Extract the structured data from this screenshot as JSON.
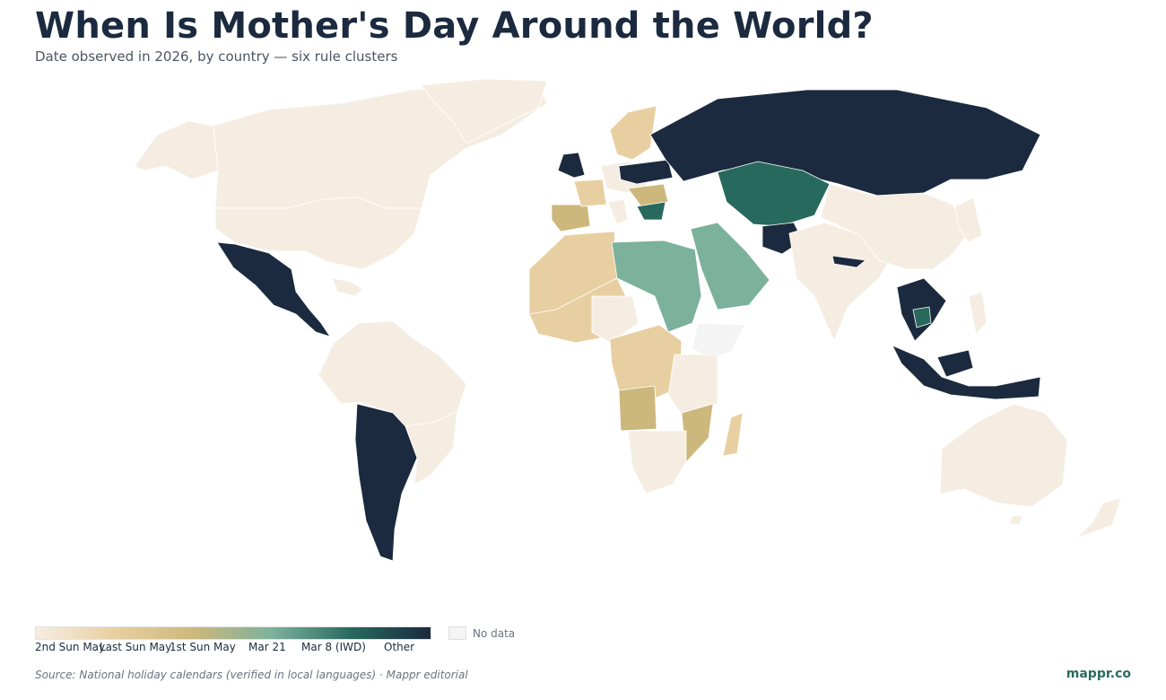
{
  "title": "When Is Mother's Day Around the World?",
  "subtitle": "Date observed in 2026, by country — six rule clusters",
  "legend": {
    "categories": [
      {
        "label": "2nd Sun May",
        "color": "#f6ede2"
      },
      {
        "label": "Last Sun May",
        "color": "#e8cfa1"
      },
      {
        "label": "1st Sun May",
        "color": "#ccb87c"
      },
      {
        "label": "Mar 21",
        "color": "#7cb19c"
      },
      {
        "label": "Mar 8 (IWD)",
        "color": "#28695e"
      },
      {
        "label": "Other",
        "color": "#1b2a3e"
      }
    ],
    "no_data_label": "No data",
    "no_data_color": "#f4f4f4"
  },
  "source": "Source: National holiday calendars (verified in local languages) · Mappr editorial",
  "brand": "mappr.co"
}
